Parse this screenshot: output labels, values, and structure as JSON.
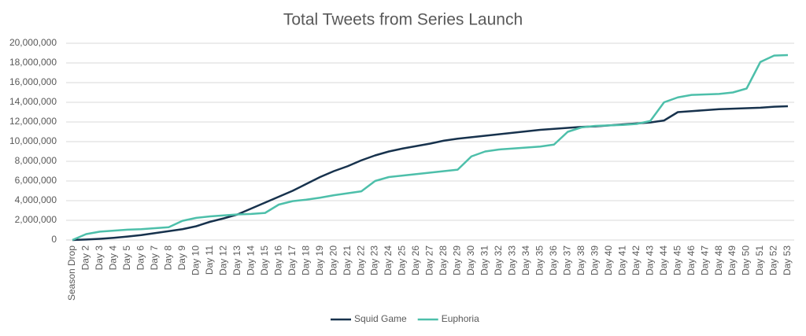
{
  "chart_data": {
    "type": "line",
    "title": "Total Tweets from Series Launch",
    "categories": [
      "Season Drop",
      "Day 2",
      "Day 3",
      "Day 4",
      "Day 5",
      "Day 6",
      "Day 7",
      "Day 8",
      "Day 9",
      "Day 10",
      "Day 11",
      "Day 12",
      "Day 13",
      "Day 14",
      "Day 15",
      "Day 16",
      "Day 17",
      "Day 18",
      "Day 19",
      "Day 20",
      "Day 21",
      "Day 22",
      "Day 23",
      "Day 24",
      "Day 25",
      "Day 26",
      "Day 27",
      "Day 28",
      "Day 29",
      "Day 30",
      "Day 31",
      "Day 32",
      "Day 33",
      "Day 34",
      "Day 35",
      "Day 36",
      "Day 37",
      "Day 38",
      "Day 39",
      "Day 40",
      "Day 41",
      "Day 42",
      "Day 43",
      "Day 44",
      "Day 45",
      "Day 46",
      "Day 47",
      "Day 48",
      "Day 49",
      "Day 50",
      "Day 51",
      "Day 52",
      "Day 53"
    ],
    "series": [
      {
        "name": "Squid Game",
        "color": "#17324d",
        "values": [
          0,
          50000,
          120000,
          220000,
          350000,
          500000,
          700000,
          900000,
          1100000,
          1400000,
          1850000,
          2200000,
          2600000,
          3200000,
          3800000,
          4400000,
          5000000,
          5700000,
          6400000,
          7000000,
          7500000,
          8100000,
          8600000,
          9000000,
          9300000,
          9550000,
          9800000,
          10100000,
          10300000,
          10450000,
          10600000,
          10750000,
          10900000,
          11050000,
          11200000,
          11300000,
          11400000,
          11500000,
          11550000,
          11650000,
          11750000,
          11850000,
          11950000,
          12150000,
          13000000,
          13100000,
          13200000,
          13300000,
          13350000,
          13400000,
          13450000,
          13550000,
          13600000
        ]
      },
      {
        "name": "Euphoria",
        "color": "#4dbfaa",
        "values": [
          0,
          600000,
          850000,
          950000,
          1050000,
          1100000,
          1200000,
          1300000,
          1950000,
          2250000,
          2400000,
          2500000,
          2600000,
          2650000,
          2750000,
          3600000,
          3950000,
          4100000,
          4300000,
          4550000,
          4750000,
          4950000,
          6000000,
          6400000,
          6550000,
          6700000,
          6850000,
          7000000,
          7150000,
          8500000,
          9000000,
          9200000,
          9300000,
          9400000,
          9500000,
          9700000,
          11000000,
          11450000,
          11600000,
          11650000,
          11700000,
          11800000,
          12100000,
          14000000,
          14500000,
          14750000,
          14800000,
          14850000,
          15000000,
          15400000,
          18100000,
          18750000,
          18800000
        ]
      }
    ],
    "ylim": [
      0,
      20000000
    ],
    "yticks": [
      0,
      {
        "value": 2000000,
        "label": "2,000,000"
      },
      {
        "value": 4000000,
        "label": "4,000,000"
      },
      {
        "value": 6000000,
        "label": "6,000,000"
      },
      {
        "value": 8000000,
        "label": "8,000,000"
      },
      {
        "value": 10000000,
        "label": "10,000,000"
      },
      {
        "value": 12000000,
        "label": "12,000,000"
      },
      {
        "value": 14000000,
        "label": "14,000,000"
      },
      {
        "value": 16000000,
        "label": "16,000,000"
      },
      {
        "value": 18000000,
        "label": "18,000,000"
      },
      {
        "value": 20000000,
        "label": "20,000,000"
      }
    ],
    "grid": true,
    "legend": "bottom"
  }
}
